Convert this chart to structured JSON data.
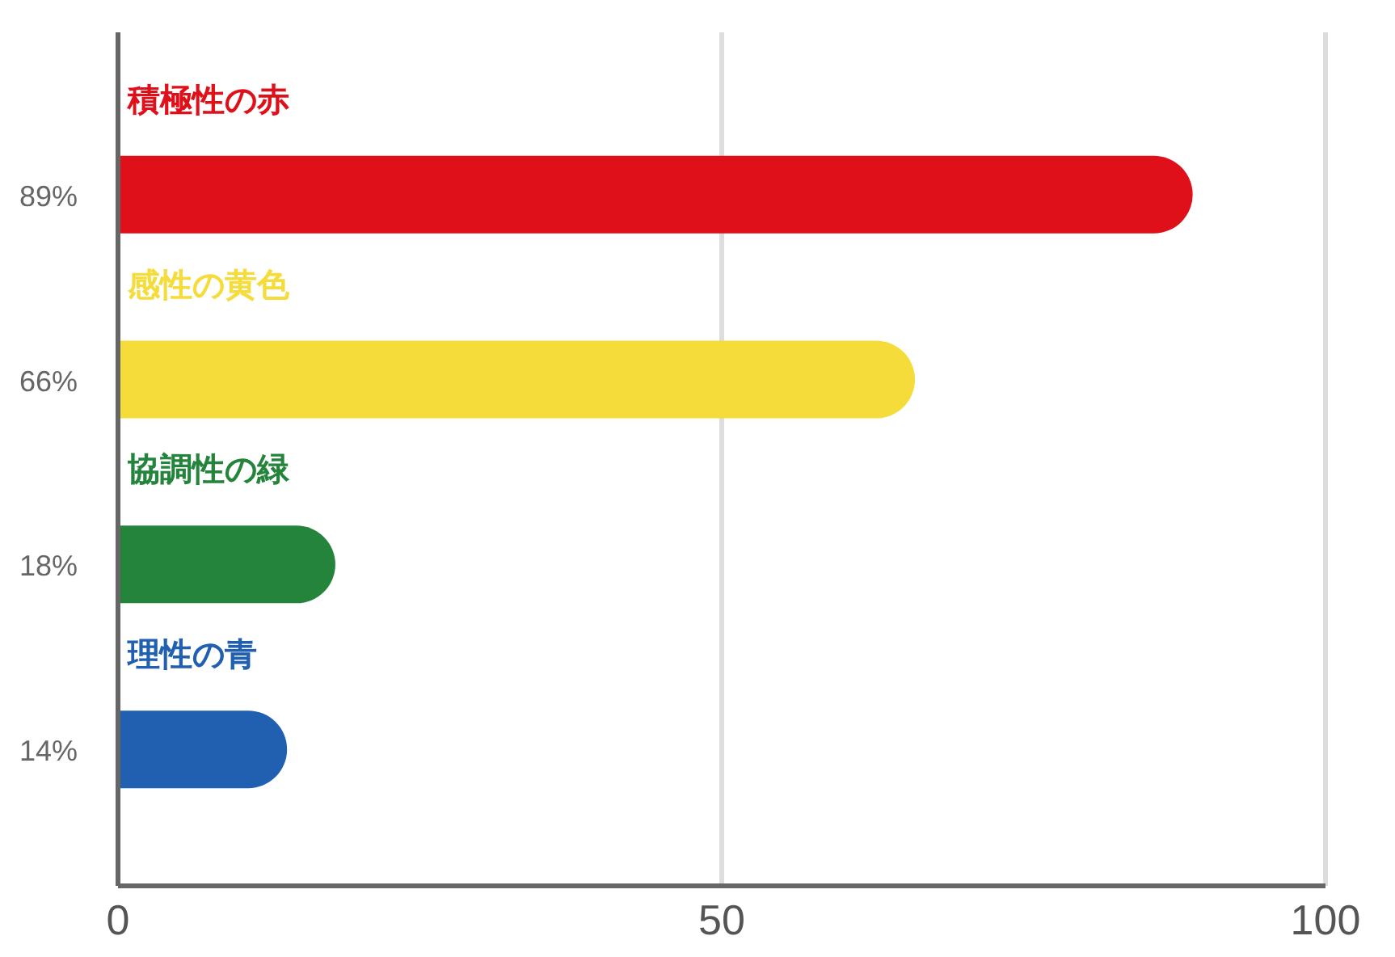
{
  "chart_data": {
    "type": "bar",
    "orientation": "horizontal",
    "categories": [
      "積極性の赤",
      "感性の黄色",
      "協調性の緑",
      "理性の青"
    ],
    "values": [
      89,
      66,
      18,
      14
    ],
    "value_labels": [
      "89%",
      "66%",
      "18%",
      "14%"
    ],
    "colors": [
      "#e0101a",
      "#f5dc3a",
      "#24843c",
      "#2160b0"
    ],
    "xlim": [
      0,
      100
    ],
    "xticks": [
      0,
      50,
      100
    ],
    "grid": "x"
  }
}
